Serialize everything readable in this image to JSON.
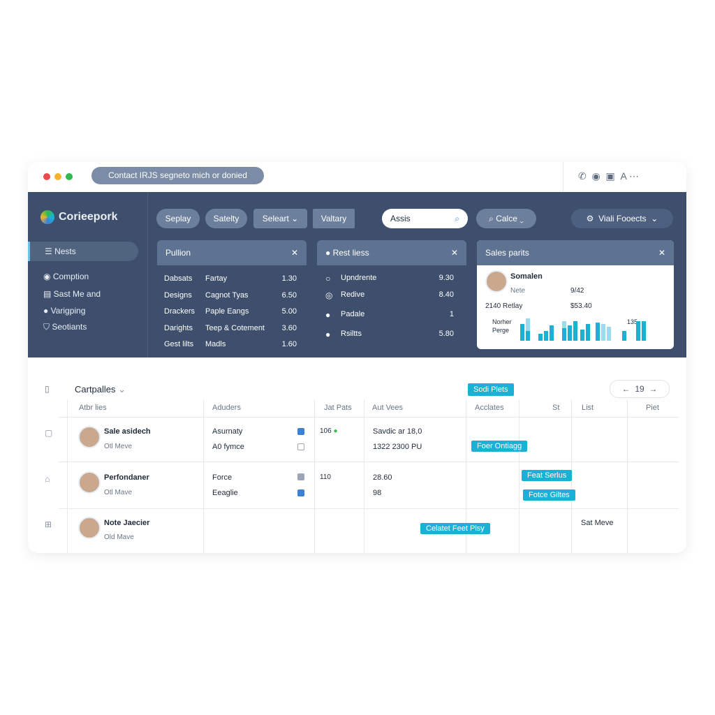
{
  "browser": {
    "address": "Contact IRJS segneto mich or donied"
  },
  "sidebar": {
    "logo": "Corieepork",
    "nav": [
      "Nests",
      "Comption",
      "Sast Me and",
      "Varigping",
      "Seotiants"
    ]
  },
  "toolbar": {
    "buttons": [
      "Seplay",
      "Satelty",
      "Seleart",
      "Valtary"
    ],
    "search": "Assis",
    "filter": "Calce",
    "contacts": "Viali Fooects"
  },
  "panels": [
    {
      "title": "Pullion",
      "rows": [
        [
          "Dabsats",
          "Fartay",
          "1.30"
        ],
        [
          "Designs",
          "Cagnot Tyas",
          "6.50"
        ],
        [
          "Drackers",
          "Paple Eangs",
          "5.00"
        ],
        [
          "Darights",
          "Teep & Cotement",
          "3.60"
        ],
        [
          "Gest lilts",
          "Madls",
          "1.60"
        ]
      ]
    },
    {
      "title": "Rest liess",
      "rows": [
        [
          "Upndrente",
          "9.30"
        ],
        [
          "Redive",
          "8.40"
        ],
        [
          "Padale",
          "1"
        ],
        [
          "Rsiltts",
          "5.80"
        ]
      ]
    },
    {
      "title": "Sales parits",
      "name": "Somalen",
      "note": "Nete",
      "date": "9/42",
      "retail": "2140 Retlay",
      "amount": "$53.40",
      "label1": "Norher",
      "label2": "Perge",
      "count": "135"
    }
  ],
  "table": {
    "title": "Cartpalles",
    "top_tag": "Sodi Plets",
    "page": "19",
    "columns": [
      "Atbr lies",
      "Aduders",
      "Jat Pats",
      "Aut Vees",
      "Acclates",
      "St",
      "List",
      "Piet"
    ],
    "rows": [
      {
        "name": "Sale asidech",
        "sub": "Otl Meve",
        "c2a": "Asurnaty",
        "c2b": "A0 fymce",
        "c3": "106",
        "c4a": "Savdic ar 18,0",
        "c4b": "1322 2300 PU",
        "tags": [
          "Foer Ontiagg"
        ]
      },
      {
        "name": "Perfondaner",
        "sub": "Otl Mave",
        "c2a": "Force",
        "c2b": "Eeaglie",
        "c3": "110",
        "c4a": "28.60",
        "c4b": "98",
        "tags": [
          "Feat Serlus",
          "Fotce Giltes"
        ]
      },
      {
        "name": "Note Jaecier",
        "sub": "Old Mave",
        "tags": [
          "Celatet Feet Plsy"
        ],
        "extra": "Sat Meve"
      }
    ]
  }
}
